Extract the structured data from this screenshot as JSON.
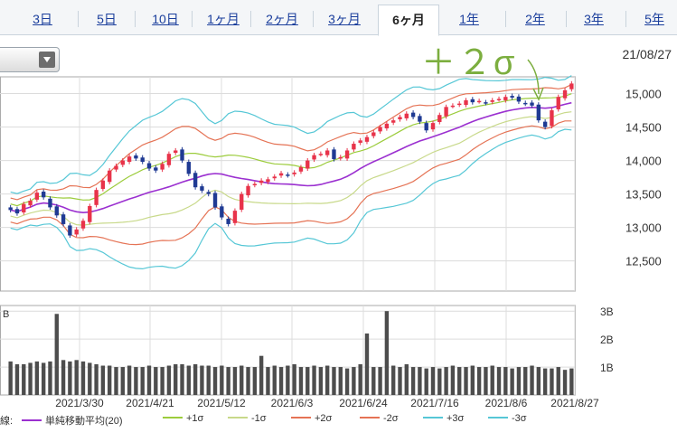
{
  "tabs": [
    {
      "label": "3日",
      "active": false
    },
    {
      "label": "5日",
      "active": false
    },
    {
      "label": "10日",
      "active": false
    },
    {
      "label": "1ヶ月",
      "active": false
    },
    {
      "label": "2ヶ月",
      "active": false
    },
    {
      "label": "3ヶ月",
      "active": false
    },
    {
      "label": "6ヶ月",
      "active": true
    },
    {
      "label": "1年",
      "active": false
    },
    {
      "label": "2年",
      "active": false
    },
    {
      "label": "3年",
      "active": false
    },
    {
      "label": "5年",
      "active": false
    }
  ],
  "date_label": "21/08/27",
  "annotation": "＋２σ",
  "colors": {
    "up": "#e8334a",
    "down": "#1f3a93",
    "sma": "#9b30d0",
    "s1": "#9ccc3c",
    "s2": "#e57355",
    "s3": "#56c7d6",
    "volume": "#4d4d4d",
    "annotation": "#7cae3f"
  },
  "legend": {
    "prefix": "線:",
    "items": [
      {
        "label": "単純移動平均(20)",
        "color": "#9b30d0"
      },
      {
        "label": "+1σ",
        "color": "#9ccc3c"
      },
      {
        "label": "-1σ",
        "color": "#c8d98a"
      },
      {
        "label": "+2σ",
        "color": "#e57355"
      },
      {
        "label": "-2σ",
        "color": "#e57355"
      },
      {
        "label": "+3σ",
        "color": "#56c7d6"
      },
      {
        "label": "-3σ",
        "color": "#56c7d6"
      }
    ]
  },
  "chart_data": {
    "type": "candlestick",
    "price_axis": {
      "ticks": [
        12500,
        13000,
        13500,
        14000,
        14500,
        15000
      ],
      "tick_labels": [
        "12,500",
        "13,000",
        "13,500",
        "14,000",
        "14,500",
        "15,000"
      ],
      "ylim": [
        12050,
        15250
      ]
    },
    "volume_axis": {
      "ticks": [
        1,
        2,
        3
      ],
      "tick_labels": [
        "1B",
        "2B",
        "3B"
      ],
      "unit_label": "B",
      "ylim": [
        0,
        3.2
      ]
    },
    "x_labels": [
      "2021/3/30",
      "2021/4/21",
      "2021/5/12",
      "2021/6/3",
      "2021/6/24",
      "2021/7/16",
      "2021/8/6",
      "2021/8/27"
    ],
    "close": [
      13260,
      13210,
      13350,
      13400,
      13520,
      13450,
      13300,
      13180,
      13050,
      12880,
      12970,
      13100,
      13320,
      13560,
      13700,
      13850,
      13920,
      14000,
      14060,
      14030,
      13980,
      13880,
      13850,
      13950,
      14100,
      14150,
      14000,
      13800,
      13600,
      13550,
      13500,
      13300,
      13150,
      13050,
      13250,
      13500,
      13620,
      13650,
      13700,
      13720,
      13760,
      13810,
      13780,
      13820,
      13900,
      14000,
      14080,
      14100,
      14150,
      14020,
      14050,
      14150,
      14250,
      14300,
      14350,
      14420,
      14500,
      14550,
      14600,
      14650,
      14700,
      14650,
      14580,
      14450,
      14560,
      14680,
      14800,
      14820,
      14850,
      14900,
      14870,
      14890,
      14860,
      14900,
      14920,
      14950,
      14940,
      14880,
      14850,
      14820,
      14600,
      14500,
      14750,
      14950,
      15050,
      15150
    ],
    "ohlc_note": "values approximate daily closes read from chart",
    "volume": [
      1.2,
      1.1,
      1.1,
      1.15,
      1.2,
      1.15,
      1.2,
      2.9,
      1.25,
      1.2,
      1.25,
      1.2,
      1.15,
      1.1,
      1.05,
      1.05,
      1.0,
      1.0,
      1.05,
      1.0,
      1.0,
      1.05,
      1.0,
      1.0,
      1.05,
      1.1,
      1.1,
      1.05,
      1.1,
      1.05,
      1.05,
      1.0,
      1.05,
      1.0,
      1.0,
      1.05,
      1.0,
      1.0,
      1.4,
      1.0,
      1.05,
      1.0,
      1.05,
      1.1,
      1.0,
      1.0,
      1.05,
      1.0,
      1.05,
      1.0,
      1.0,
      0.95,
      1.0,
      1.1,
      2.2,
      1.0,
      1.0,
      3.0,
      1.05,
      1.0,
      1.1,
      1.0,
      1.0,
      0.95,
      1.0,
      0.95,
      1.0,
      1.05,
      1.0,
      1.0,
      1.05,
      1.0,
      1.0,
      1.05,
      1.0,
      1.0,
      0.95,
      1.0,
      1.0,
      1.05,
      1.0,
      0.95,
      0.95,
      1.0,
      0.9,
      0.95
    ]
  }
}
